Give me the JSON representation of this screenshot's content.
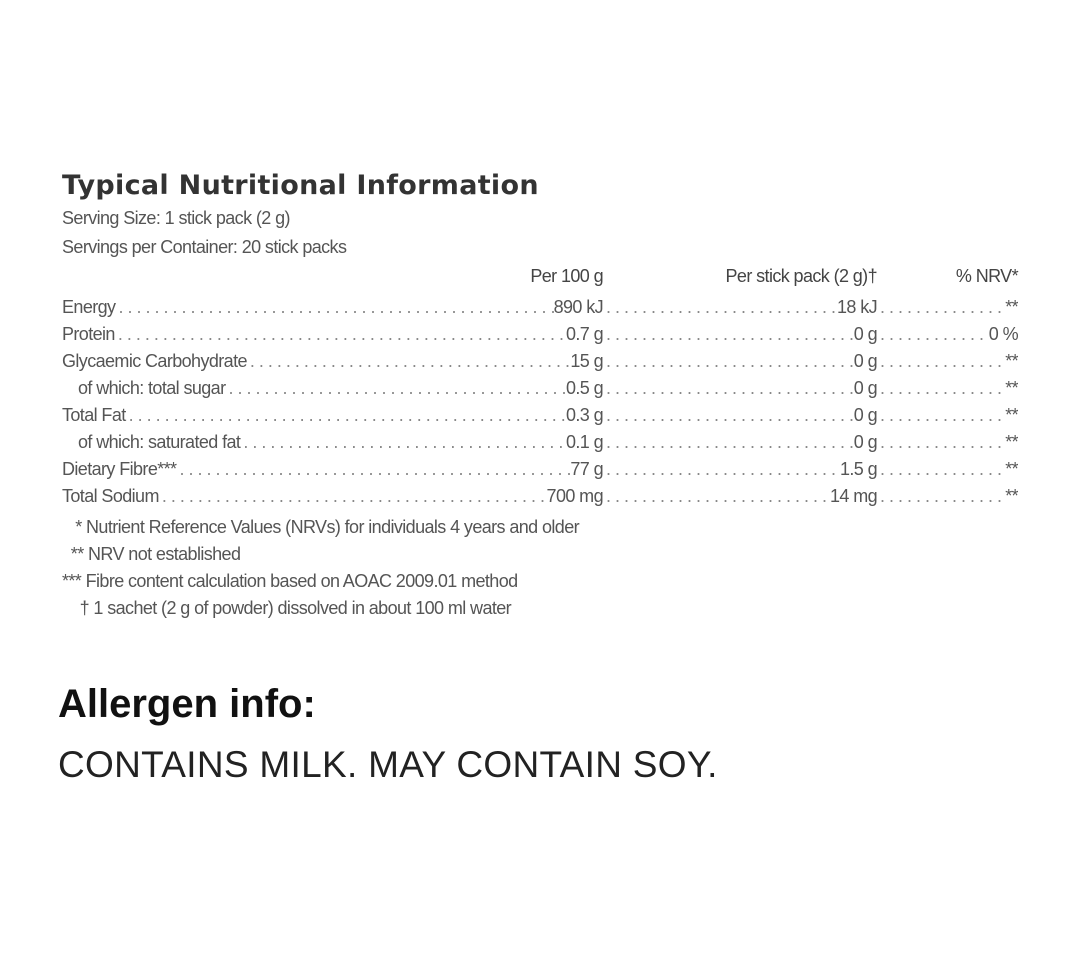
{
  "title": "Typical Nutritional Information",
  "serving_size": "Serving Size: 1 stick pack (2 g)",
  "servings_per_container": "Servings per Container: 20 stick packs",
  "columns": [
    "Per 100 g",
    "Per stick pack (2 g)†",
    "% NRV*"
  ],
  "rows": [
    {
      "label": "Energy",
      "per100": "890 kJ",
      "perstick": "18 kJ",
      "nrv": "**"
    },
    {
      "label": "Protein",
      "per100": "0.7 g",
      "perstick": "0 g",
      "nrv": "0 %"
    },
    {
      "label": "Glycaemic Carbohydrate",
      "per100": "15 g",
      "perstick": "0 g",
      "nrv": "**"
    },
    {
      "label": "of which: total sugar",
      "per100": "0.5 g",
      "perstick": "0 g",
      "nrv": "**"
    },
    {
      "label": "Total Fat",
      "per100": "0.3 g",
      "perstick": "0 g",
      "nrv": "**"
    },
    {
      "label": "of which: saturated fat",
      "per100": "0.1 g",
      "perstick": "0 g",
      "nrv": "**"
    },
    {
      "label": "Dietary Fibre***",
      "per100": "77 g",
      "perstick": "1.5 g",
      "nrv": "**"
    },
    {
      "label": "Total Sodium",
      "per100": "700 mg",
      "perstick": "14 mg",
      "nrv": "**"
    }
  ],
  "notes": [
    "   * Nutrient Reference Values (NRVs) for individuals 4 years and older",
    "  ** NRV not established",
    "*** Fibre content calculation based on AOAC 2009.01 method",
    "    † 1 sachet (2 g of powder) dissolved in about 100 ml water"
  ],
  "allergen": {
    "heading": "Allergen info:",
    "text": "CONTAINS MILK. MAY CONTAIN SOY."
  }
}
